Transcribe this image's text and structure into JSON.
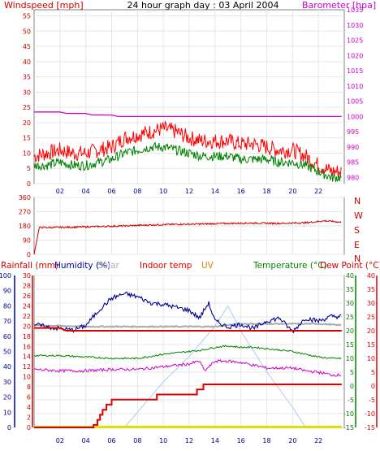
{
  "header": {
    "left_title": "Windspeed [mph]",
    "center_title": "24 hour graph day : 03 April 2004",
    "right_title": "Barometer [hpa]"
  },
  "lower_header": {
    "rainfall": "Rainfall (mm)",
    "humidity": "Humidity (%)",
    "solar": "Solar",
    "indoor": "Indoor temp",
    "uv": "UV",
    "temperature": "Temperature (°C)",
    "dewpoint": "Dew Point (°C)"
  },
  "colors": {
    "gust": "#ff0000",
    "avg": "#008000",
    "baro": "#cc00cc",
    "dir": "#cc0000",
    "humidity": "#000099",
    "rain": "#dd0000",
    "indoor": "#dd0000",
    "temp": "#008000",
    "dew": "#cc00cc",
    "solar": "#aaccee",
    "grey": "#aaaaaa",
    "uv": "#dddd00",
    "axis_left_top": "#cc0000",
    "axis_right_top": "#cc00cc",
    "axis_left_bot1": "#cc0000",
    "axis_left_bot2": "#000099",
    "axis_right_bot1": "#008000",
    "axis_right_bot2": "#dd0000"
  },
  "chart_data": [
    {
      "type": "line",
      "title": "24 hour graph day : 03 April 2004",
      "x_ticks": [
        "02",
        "04",
        "06",
        "08",
        "10",
        "12",
        "14",
        "16",
        "18",
        "20",
        "22"
      ],
      "xlim": [
        0,
        24
      ],
      "left_axis": {
        "label": "Windspeed [mph]",
        "ticks": [
          0,
          5,
          10,
          15,
          20,
          25,
          30,
          35,
          40,
          45,
          50,
          55
        ],
        "ylim": [
          0,
          57
        ]
      },
      "right_axis": {
        "label": "Barometer [hpa]",
        "ticks": [
          980,
          985,
          990,
          995,
          1000,
          1005,
          1010,
          1015,
          1020,
          1025,
          1030,
          1035
        ],
        "ylim": [
          978,
          1035
        ]
      },
      "series": [
        {
          "id": "gust",
          "axis": "left",
          "x": [
            0,
            1,
            2,
            3,
            4,
            5,
            6,
            7,
            8,
            9,
            10,
            11,
            12,
            13,
            14,
            15,
            16,
            17,
            18,
            19,
            20,
            21,
            22,
            23,
            23.8
          ],
          "values": [
            9,
            10,
            11,
            10,
            10,
            11,
            12,
            15,
            16,
            17,
            18,
            17,
            15,
            14,
            14,
            14,
            13,
            13,
            12,
            11,
            11,
            9,
            6,
            4,
            4
          ]
        },
        {
          "id": "avg",
          "axis": "left",
          "x": [
            0,
            1,
            2,
            3,
            4,
            5,
            6,
            7,
            8,
            9,
            10,
            11,
            12,
            13,
            14,
            15,
            16,
            17,
            18,
            19,
            20,
            21,
            22,
            23,
            23.8
          ],
          "values": [
            6,
            6,
            7,
            6,
            6,
            7,
            8,
            10,
            11,
            12,
            12,
            11,
            10,
            9,
            9,
            9,
            8,
            8,
            8,
            7,
            7,
            6,
            4,
            2,
            2
          ]
        },
        {
          "id": "baro",
          "axis": "right",
          "x": [
            0,
            2,
            2.5,
            4,
            4.5,
            6,
            6.5,
            23.8
          ],
          "values": [
            1001.5,
            1001.5,
            1001,
            1001,
            1000.5,
            1000.5,
            1000,
            1000
          ]
        }
      ]
    },
    {
      "type": "line",
      "x_ticks": [
        "02",
        "04",
        "06",
        "08",
        "10",
        "12",
        "14",
        "16",
        "18",
        "20",
        "22"
      ],
      "xlim": [
        0,
        24
      ],
      "left_axis": {
        "ticks": [
          0,
          90,
          180,
          270,
          360
        ],
        "ylim": [
          0,
          360
        ]
      },
      "right_axis": {
        "ticks": [
          "N",
          "W",
          "S",
          "E",
          "N"
        ]
      },
      "series": [
        {
          "id": "dir",
          "x": [
            0,
            0.4,
            1,
            3,
            5,
            7,
            9,
            11,
            13,
            15,
            17,
            19,
            21,
            22.5,
            23.2,
            23.8
          ],
          "values": [
            0,
            170,
            170,
            172,
            176,
            180,
            186,
            190,
            192,
            196,
            198,
            196,
            200,
            212,
            208,
            202
          ]
        }
      ]
    },
    {
      "type": "line",
      "x_ticks": [
        "02",
        "04",
        "06",
        "08",
        "10",
        "12",
        "14",
        "16",
        "18",
        "20",
        "22"
      ],
      "xlim": [
        0,
        24
      ],
      "axes": {
        "rainfall": {
          "label": "Rainfall (mm)",
          "ticks": [
            0,
            2,
            4,
            6,
            8,
            10,
            12,
            14,
            16,
            18,
            20,
            22,
            24,
            26,
            28,
            30
          ],
          "ylim": [
            0,
            30
          ]
        },
        "humidity": {
          "label": "Humidity (%)",
          "ticks": [
            0,
            10,
            20,
            30,
            40,
            50,
            60,
            70,
            80,
            90,
            100
          ],
          "ylim": [
            0,
            100
          ]
        },
        "temperature": {
          "label": "Temperature (°C)",
          "ticks": [
            -15,
            -10,
            -5,
            0,
            5,
            10,
            15,
            20,
            25,
            30,
            35,
            40
          ],
          "ylim": [
            -15,
            40
          ]
        },
        "dewpoint": {
          "label": "Dew Point (°C)",
          "ticks": [
            -15,
            -10,
            -5,
            0,
            5,
            10,
            15,
            20,
            25,
            30,
            35,
            40
          ],
          "ylim": [
            -15,
            40
          ]
        }
      },
      "series": [
        {
          "id": "humidity",
          "axis": "humidity",
          "x": [
            0,
            1,
            2,
            3,
            4,
            5,
            6,
            7,
            8,
            9,
            10,
            11,
            12,
            12.8,
            13.5,
            14,
            15,
            16,
            17,
            18,
            19,
            20,
            21,
            22,
            23,
            23.8
          ],
          "values": [
            68,
            66,
            65,
            64,
            67,
            77,
            85,
            88,
            86,
            82,
            81,
            79,
            77,
            72,
            82,
            70,
            66,
            68,
            65,
            70,
            72,
            63,
            72,
            70,
            73,
            73
          ]
        },
        {
          "id": "indoor",
          "axis": "temperature",
          "x": [
            0,
            2,
            2.5,
            23.8
          ],
          "values": [
            21,
            21,
            20,
            20
          ]
        },
        {
          "id": "grey",
          "axis": "temperature",
          "x": [
            0,
            4,
            8,
            12,
            14,
            16,
            18,
            20,
            22,
            23.8
          ],
          "values": [
            22,
            21.5,
            21.5,
            21.5,
            21.5,
            22.5,
            22.5,
            22.5,
            22.5,
            22
          ]
        },
        {
          "id": "temp",
          "axis": "temperature",
          "x": [
            0,
            2,
            4,
            6,
            8,
            10,
            11,
            12,
            13,
            14,
            15,
            16,
            17,
            18,
            19,
            20,
            21,
            22,
            23,
            23.8
          ],
          "values": [
            11,
            11,
            10.5,
            10,
            10,
            11.5,
            12,
            12.5,
            13,
            14,
            14.5,
            14,
            14,
            13.5,
            13,
            12.5,
            11.5,
            10.5,
            10,
            10
          ]
        },
        {
          "id": "dew",
          "axis": "dewpoint",
          "x": [
            0,
            2,
            4,
            6,
            8,
            10,
            11,
            12,
            12.8,
            13.2,
            14,
            15,
            16,
            17,
            18,
            19,
            20,
            21,
            22,
            23,
            23.8
          ],
          "values": [
            6,
            5.5,
            5.5,
            6,
            6,
            7,
            7.5,
            8,
            9,
            5.5,
            9,
            9,
            8.5,
            7.5,
            6.5,
            6.5,
            6.5,
            5.5,
            5,
            4,
            4
          ]
        },
        {
          "id": "rain",
          "axis": "rainfall",
          "x": [
            0,
            4.6,
            4.6,
            4.9,
            4.9,
            5.1,
            5.1,
            5.3,
            5.3,
            5.6,
            5.6,
            6,
            6,
            9.5,
            9.5,
            12.6,
            12.6,
            13.1,
            13.1,
            23.8
          ],
          "values": [
            0,
            0,
            0.5,
            0.5,
            1.5,
            1.5,
            2.5,
            2.5,
            3.5,
            3.5,
            4.5,
            4.5,
            5.5,
            5.5,
            6.5,
            6.5,
            7.5,
            7.5,
            8.5,
            8.5
          ]
        },
        {
          "id": "solar",
          "axis": "rainfall",
          "x": [
            0,
            7,
            8,
            10,
            12,
            14,
            15,
            16,
            18,
            20,
            21,
            23.8
          ],
          "values": [
            0,
            0,
            3,
            9,
            14,
            20,
            24,
            19,
            11,
            4,
            0,
            0
          ]
        },
        {
          "id": "uv",
          "axis": "rainfall",
          "x": [
            0,
            23.8
          ],
          "values": [
            0.1,
            0.1
          ]
        }
      ]
    }
  ]
}
